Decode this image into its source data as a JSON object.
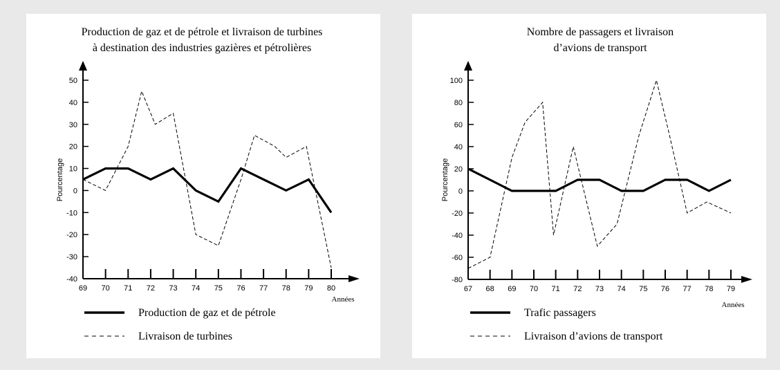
{
  "chart_data": [
    {
      "type": "line",
      "title": [
        "Production de gaz et de pétrole et livraison de turbines",
        "à destination des industries gazières et pétrolières"
      ],
      "ylabel": "Pourcentage",
      "xlabel": "Années",
      "ylim": [
        -40,
        50
      ],
      "y_ticks": [
        50,
        40,
        30,
        20,
        10,
        0,
        -10,
        -20,
        -30,
        -40
      ],
      "x_ticks": [
        "69",
        "70",
        "71",
        "72",
        "73",
        "74",
        "75",
        "76",
        "77",
        "78",
        "79",
        "80"
      ],
      "xlim": [
        69,
        80
      ],
      "series": [
        {
          "name": "Production de gaz et de pétrole",
          "style": "solid",
          "x": [
            69,
            70,
            71,
            72,
            73,
            74,
            75,
            76,
            77,
            78,
            79,
            80
          ],
          "y": [
            5,
            10,
            10,
            5,
            10,
            0,
            -5,
            10,
            5,
            0,
            5,
            -10
          ]
        },
        {
          "name": "Livraison de turbines",
          "style": "dashed",
          "x": [
            69,
            70,
            71,
            71.6,
            72.2,
            73,
            74,
            75,
            76,
            76.6,
            77.5,
            78,
            78.9,
            80
          ],
          "y": [
            5,
            0,
            20,
            45,
            30,
            35,
            -20,
            -25,
            5,
            25,
            20,
            15,
            20,
            -35
          ]
        }
      ]
    },
    {
      "type": "line",
      "title": [
        "Nombre de passagers et livraison",
        "d’avions de transport"
      ],
      "ylabel": "Pourcentage",
      "xlabel": "Années",
      "ylim": [
        -80,
        100
      ],
      "y_ticks": [
        100,
        80,
        60,
        40,
        20,
        0,
        -20,
        -40,
        -60,
        -80
      ],
      "x_ticks": [
        "67",
        "68",
        "69",
        "70",
        "71",
        "72",
        "73",
        "74",
        "75",
        "76",
        "77",
        "78",
        "79"
      ],
      "xlim": [
        67,
        79
      ],
      "series": [
        {
          "name": "Trafic passagers",
          "style": "solid",
          "x": [
            67,
            68,
            69,
            70,
            71,
            72,
            73,
            74,
            75,
            76,
            77,
            78,
            79
          ],
          "y": [
            20,
            10,
            0,
            0,
            0,
            10,
            10,
            0,
            0,
            10,
            10,
            0,
            10
          ]
        },
        {
          "name": "Livraison d’avions de transport",
          "style": "dashed",
          "x": [
            67,
            68,
            69,
            69.6,
            70.4,
            70.9,
            71.8,
            72.9,
            73.8,
            74.8,
            75.6,
            76.2,
            77,
            77.9,
            79
          ],
          "y": [
            -70,
            -60,
            30,
            62,
            80,
            -40,
            40,
            -50,
            -30,
            50,
            100,
            50,
            -20,
            -10,
            -20
          ]
        }
      ]
    }
  ]
}
